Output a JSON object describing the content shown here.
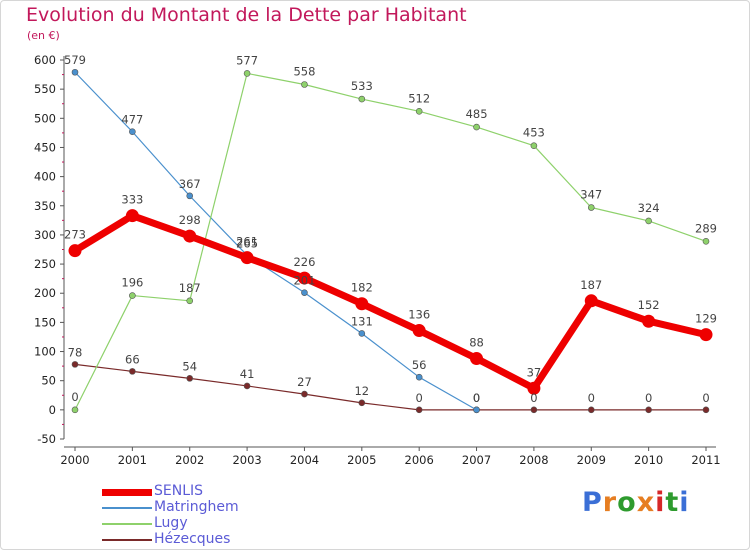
{
  "title": "Evolution du Montant de la Dette par Habitant",
  "unit": "(en €)",
  "logo": {
    "text": "Proxiti",
    "colors": [
      "#3b6fd6",
      "#e67e22",
      "#2e9b2e",
      "#e67e22",
      "#d62828",
      "#2e9b2e",
      "#3b6fd6"
    ]
  },
  "chart_data": {
    "type": "line",
    "x": [
      2000,
      2001,
      2002,
      2003,
      2004,
      2005,
      2006,
      2007,
      2008,
      2009,
      2010,
      2011
    ],
    "ylim": [
      -50,
      600
    ],
    "yticks": [
      -50,
      0,
      50,
      100,
      150,
      200,
      250,
      300,
      350,
      400,
      450,
      500,
      550,
      600
    ],
    "grid": false,
    "legend_position": "bottom-left",
    "series": [
      {
        "name": "SENLIS",
        "color": "#ee0000",
        "values": [
          273,
          333,
          298,
          261,
          226,
          182,
          136,
          88,
          37,
          187,
          152,
          129
        ],
        "labels": [
          "273",
          "333",
          "298",
          "261",
          "226",
          "182",
          "136",
          "88",
          "37",
          "187",
          "152",
          "129"
        ]
      },
      {
        "name": "Matringhem",
        "color": "#4a90cd",
        "values": [
          579,
          477,
          367,
          265,
          201,
          131,
          56,
          0,
          null,
          null,
          null,
          null
        ],
        "labels": [
          "579",
          "477",
          "367",
          "265",
          "201",
          "131",
          "56",
          "0",
          null,
          null,
          null,
          null
        ]
      },
      {
        "name": "Lugy",
        "color": "#8ed16b",
        "values": [
          0,
          196,
          187,
          577,
          558,
          533,
          512,
          485,
          453,
          347,
          324,
          289
        ],
        "labels": [
          "0",
          "196",
          "187",
          "577",
          "558",
          "533",
          "512",
          "485",
          "453",
          "347",
          "324",
          "289"
        ]
      },
      {
        "name": "Hézecques",
        "color": "#7a2a2a",
        "values": [
          78,
          66,
          54,
          41,
          27,
          12,
          0,
          0,
          0,
          0,
          0,
          0
        ],
        "labels": [
          "78",
          "66",
          "54",
          "41",
          "27",
          "12",
          "0",
          "0",
          "0",
          "0",
          "0",
          "0"
        ]
      }
    ]
  }
}
